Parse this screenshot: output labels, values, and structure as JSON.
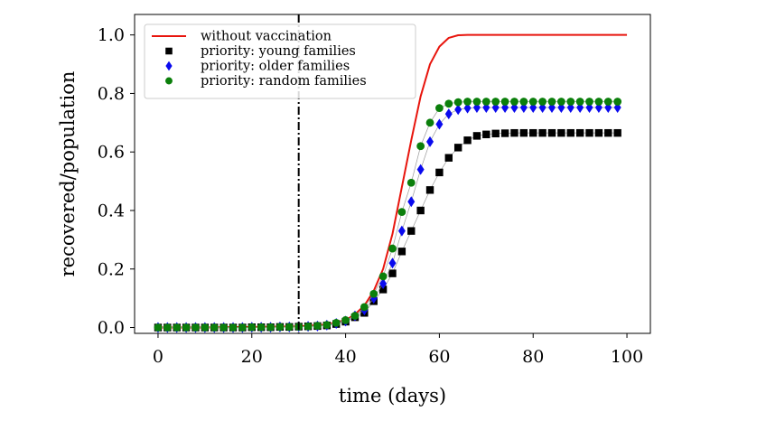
{
  "chart_data": {
    "type": "scatter",
    "xlabel": "time (days)",
    "ylabel": "recovered/population",
    "xlim": [
      -5,
      105
    ],
    "ylim": [
      -0.02,
      1.07
    ],
    "xticks": [
      0,
      20,
      40,
      60,
      80,
      100
    ],
    "yticks": [
      0.0,
      0.2,
      0.4,
      0.6,
      0.8,
      1.0
    ],
    "xtick_labels": [
      "0",
      "20",
      "40",
      "60",
      "80",
      "100"
    ],
    "ytick_labels": [
      "0.0",
      "0.2",
      "0.4",
      "0.6",
      "0.8",
      "1.0"
    ],
    "grid": false,
    "legend_position": "top-left",
    "vline": {
      "x": 30,
      "style": "dash-dot",
      "color": "#000000"
    },
    "series": [
      {
        "name": "without vaccination",
        "marker": "line",
        "color": "#e8150d",
        "x": [
          0,
          10,
          20,
          30,
          36,
          40,
          42,
          44,
          46,
          48,
          50,
          52,
          54,
          56,
          58,
          60,
          62,
          64,
          66,
          70,
          80,
          90,
          100
        ],
        "y": [
          0.0,
          0.0,
          0.002,
          0.004,
          0.01,
          0.025,
          0.045,
          0.075,
          0.125,
          0.2,
          0.32,
          0.48,
          0.64,
          0.79,
          0.9,
          0.96,
          0.99,
          0.999,
          1.0,
          1.0,
          1.0,
          1.0,
          1.0
        ]
      },
      {
        "name": "priority: young families",
        "marker": "square",
        "color": "#000000",
        "x": [
          0,
          2,
          4,
          6,
          8,
          10,
          12,
          14,
          16,
          18,
          20,
          22,
          24,
          26,
          28,
          30,
          32,
          34,
          36,
          38,
          40,
          42,
          44,
          46,
          48,
          50,
          52,
          54,
          56,
          58,
          60,
          62,
          64,
          66,
          68,
          70,
          72,
          74,
          76,
          78,
          80,
          82,
          84,
          86,
          88,
          90,
          92,
          94,
          96,
          98
        ],
        "y": [
          0.0,
          0.0,
          0.0,
          0.0,
          0.0,
          0.0,
          0.0,
          0.0,
          0.0,
          0.0,
          0.001,
          0.001,
          0.001,
          0.002,
          0.002,
          0.003,
          0.004,
          0.005,
          0.007,
          0.012,
          0.02,
          0.035,
          0.05,
          0.09,
          0.13,
          0.185,
          0.26,
          0.33,
          0.4,
          0.47,
          0.53,
          0.58,
          0.615,
          0.64,
          0.655,
          0.66,
          0.663,
          0.664,
          0.665,
          0.665,
          0.665,
          0.665,
          0.665,
          0.665,
          0.665,
          0.665,
          0.665,
          0.665,
          0.665,
          0.665
        ]
      },
      {
        "name": "priority: older families",
        "marker": "diamond",
        "color": "#0a0aee",
        "x": [
          0,
          2,
          4,
          6,
          8,
          10,
          12,
          14,
          16,
          18,
          20,
          22,
          24,
          26,
          28,
          30,
          32,
          34,
          36,
          38,
          40,
          42,
          44,
          46,
          48,
          50,
          52,
          54,
          56,
          58,
          60,
          62,
          64,
          66,
          68,
          70,
          72,
          74,
          76,
          78,
          80,
          82,
          84,
          86,
          88,
          90,
          92,
          94,
          96,
          98
        ],
        "y": [
          0.0,
          0.0,
          0.0,
          0.0,
          0.0,
          0.0,
          0.0,
          0.0,
          0.0,
          0.0,
          0.001,
          0.001,
          0.001,
          0.002,
          0.002,
          0.003,
          0.004,
          0.005,
          0.008,
          0.014,
          0.022,
          0.04,
          0.06,
          0.1,
          0.15,
          0.22,
          0.33,
          0.43,
          0.54,
          0.635,
          0.695,
          0.73,
          0.745,
          0.75,
          0.752,
          0.752,
          0.752,
          0.752,
          0.752,
          0.752,
          0.752,
          0.752,
          0.752,
          0.752,
          0.752,
          0.752,
          0.752,
          0.752,
          0.752,
          0.752
        ]
      },
      {
        "name": "priority: random families",
        "marker": "circle",
        "color": "#0b7f0b",
        "x": [
          0,
          2,
          4,
          6,
          8,
          10,
          12,
          14,
          16,
          18,
          20,
          22,
          24,
          26,
          28,
          30,
          32,
          34,
          36,
          38,
          40,
          42,
          44,
          46,
          48,
          50,
          52,
          54,
          56,
          58,
          60,
          62,
          64,
          66,
          68,
          70,
          72,
          74,
          76,
          78,
          80,
          82,
          84,
          86,
          88,
          90,
          92,
          94,
          96,
          98
        ],
        "y": [
          0.0,
          0.0,
          0.0,
          0.0,
          0.0,
          0.0,
          0.0,
          0.0,
          0.0,
          0.0,
          0.001,
          0.001,
          0.001,
          0.002,
          0.002,
          0.003,
          0.004,
          0.006,
          0.009,
          0.016,
          0.025,
          0.04,
          0.07,
          0.115,
          0.175,
          0.27,
          0.395,
          0.495,
          0.62,
          0.7,
          0.75,
          0.765,
          0.77,
          0.772,
          0.772,
          0.772,
          0.772,
          0.772,
          0.772,
          0.772,
          0.772,
          0.772,
          0.772,
          0.772,
          0.772,
          0.772,
          0.772,
          0.772,
          0.772,
          0.772
        ]
      }
    ]
  }
}
